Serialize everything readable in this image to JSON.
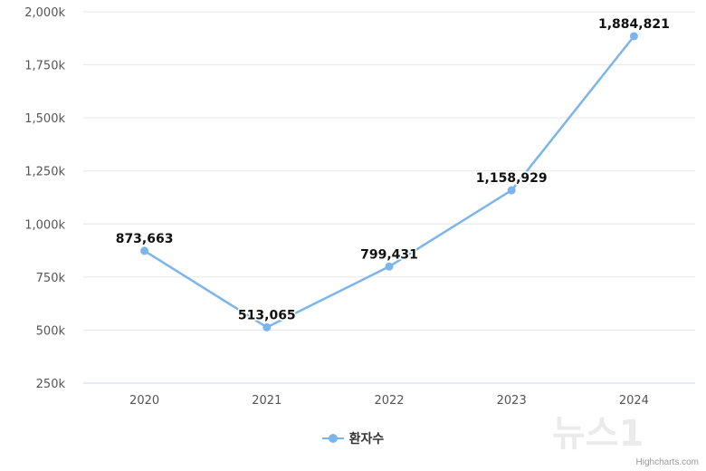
{
  "chart_data": {
    "type": "line",
    "categories": [
      "2020",
      "2021",
      "2022",
      "2023",
      "2024"
    ],
    "series": [
      {
        "name": "환자수",
        "values": [
          873663,
          513065,
          799431,
          1158929,
          1884821
        ],
        "labels": [
          "873,663",
          "513,065",
          "799,431",
          "1,158,929",
          "1,884,821"
        ]
      }
    ],
    "y_ticks": [
      250000,
      500000,
      750000,
      1000000,
      1250000,
      1500000,
      1750000,
      2000000
    ],
    "y_tick_labels": [
      "250k",
      "500k",
      "750k",
      "1,000k",
      "1,250k",
      "1,500k",
      "1,750k",
      "2,000k"
    ],
    "ylim": [
      250000,
      2000000
    ],
    "grid": true,
    "legend_position": "bottom-center",
    "colors": {
      "series": "#7cb5ec",
      "grid": "#e6e6e6",
      "axis": "#ccd6eb"
    }
  },
  "legend": {
    "label": "환자수"
  },
  "credits": "Highcharts.com",
  "watermark": {
    "text": "뉴스1",
    "icon": "news1-logo-icon"
  }
}
